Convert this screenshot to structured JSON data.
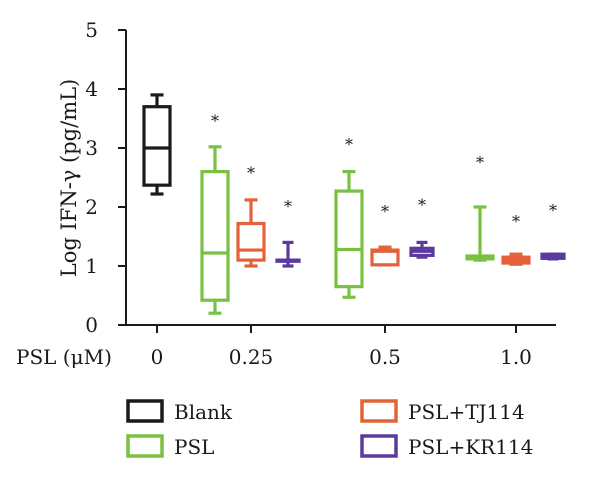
{
  "chart_data": {
    "type": "box",
    "ylabel": "Log IFN-γ (pg/mL)",
    "xlabel": "PSL (μM)",
    "ylim": [
      0,
      5
    ],
    "yticks": [
      "0",
      "1",
      "2",
      "3",
      "4",
      "5"
    ],
    "categories": [
      "0",
      "0.25",
      "0.5",
      "1.0"
    ],
    "legend_position": "bottom",
    "series": [
      {
        "name": "Blank",
        "color": "#1a1a1a"
      },
      {
        "name": "PSL",
        "color": "#7ac143"
      },
      {
        "name": "PSL+TJ114",
        "color": "#e3623a"
      },
      {
        "name": "PSL+KR114",
        "color": "#5b3aa0"
      }
    ],
    "boxes": [
      {
        "series": "Blank",
        "category": "0",
        "min": 2.22,
        "q1": 2.37,
        "median": 3.0,
        "q3": 3.7,
        "max": 3.9
      },
      {
        "series": "PSL",
        "category": "0.25",
        "min": 0.2,
        "q1": 0.42,
        "median": 1.22,
        "q3": 2.6,
        "max": 3.02,
        "marker": "*",
        "marker_y": 3.5
      },
      {
        "series": "PSL+TJ114",
        "category": "0.25",
        "min": 1.0,
        "q1": 1.1,
        "median": 1.27,
        "q3": 1.72,
        "max": 2.12,
        "marker": "*",
        "marker_y": 2.62
      },
      {
        "series": "PSL+KR114",
        "category": "0.25",
        "min": 1.0,
        "q1": 1.08,
        "median": 1.1,
        "q3": 1.1,
        "max": 1.4,
        "marker": "*",
        "marker_y": 2.05
      },
      {
        "series": "PSL",
        "category": "0.5",
        "min": 0.47,
        "q1": 0.65,
        "median": 1.28,
        "q3": 2.27,
        "max": 2.6,
        "marker": "*",
        "marker_y": 3.1
      },
      {
        "series": "PSL+TJ114",
        "category": "0.5",
        "min": 1.02,
        "q1": 1.02,
        "median": 1.25,
        "q3": 1.27,
        "max": 1.32,
        "marker": "*",
        "marker_y": 1.97
      },
      {
        "series": "PSL+KR114",
        "category": "0.5",
        "min": 1.15,
        "q1": 1.18,
        "median": 1.25,
        "q3": 1.3,
        "max": 1.4,
        "marker": "*",
        "marker_y": 2.08
      },
      {
        "series": "PSL",
        "category": "1.0",
        "min": 1.1,
        "q1": 1.12,
        "median": 1.15,
        "q3": 1.17,
        "max": 2.0,
        "marker": "*",
        "marker_y": 2.8
      },
      {
        "series": "PSL+TJ114",
        "category": "1.0",
        "min": 1.03,
        "q1": 1.05,
        "median": 1.1,
        "q3": 1.15,
        "max": 1.2,
        "marker": "*",
        "marker_y": 1.8
      },
      {
        "series": "PSL+KR114",
        "category": "1.0",
        "min": 1.12,
        "q1": 1.13,
        "median": 1.17,
        "q3": 1.2,
        "max": 1.2,
        "marker": "*",
        "marker_y": 1.98
      }
    ]
  }
}
